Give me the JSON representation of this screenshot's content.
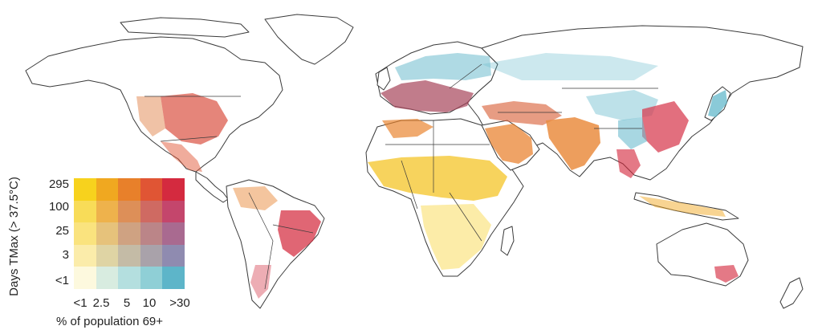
{
  "legend": {
    "y_axis_label": "Days TMax (> 37.5°C)",
    "y_ticks": [
      "295",
      "100",
      "25",
      "3",
      "<1"
    ],
    "x_ticks": [
      "<1",
      "2.5",
      "5",
      "10",
      ">30"
    ],
    "x_axis_label": "% of population 69+",
    "grid_colors": [
      [
        "#f7d21d",
        "#f0a820",
        "#e8802a",
        "#e05534",
        "#d42a3f"
      ],
      [
        "#f8dc58",
        "#eeb24c",
        "#dd8f58",
        "#cf6a62",
        "#c4466c"
      ],
      [
        "#fae37e",
        "#e6c27b",
        "#cfa282",
        "#bb8588",
        "#a96a90"
      ],
      [
        "#fbecaa",
        "#dfd4a4",
        "#c4bba6",
        "#a9a2aa",
        "#8f8bb0"
      ],
      [
        "#fdf9de",
        "#d8ece0",
        "#b4dfdf",
        "#8fcfd6",
        "#5db5c9"
      ]
    ]
  },
  "colors": {
    "hot_young": "#f4c21e",
    "hot_old": "#d42a3f",
    "mild_old": "#5db5c9",
    "orange": "#e8802a"
  }
}
